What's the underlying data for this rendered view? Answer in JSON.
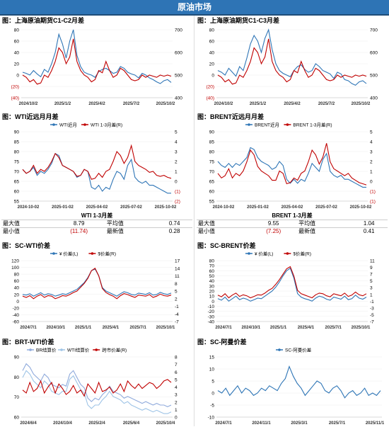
{
  "banner": "原油市场",
  "panels": [
    {
      "title": "图：上海原油期货C1-C2月差",
      "xticks": [
        "2024/10/2",
        "2025/1/2",
        "2025/4/2",
        "2025/7/2",
        "2025/10/2"
      ],
      "yL": [
        "80",
        "60",
        "40",
        "20",
        "0",
        "(20)",
        "(40)"
      ],
      "yR": [
        "700",
        "600",
        "500",
        "400"
      ],
      "legend": []
    },
    {
      "title": "图：上海原油期货C1-C3月差",
      "xticks": [
        "2024/10/2",
        "2025/1/2",
        "2025/4/2",
        "2025/7/2",
        "2025/10/2"
      ],
      "yL": [
        "80",
        "60",
        "40",
        "20",
        "0",
        "(20)",
        "(40)"
      ],
      "yR": [
        "700",
        "600",
        "500",
        "400"
      ],
      "legend": []
    },
    {
      "title": "图：WTI近远月月差",
      "xticks": [
        "2024-10-02",
        "2025-01-02",
        "2025-04-02",
        "2025-07-02",
        "2025-10-02"
      ],
      "yL": [
        "90",
        "85",
        "80",
        "75",
        "70",
        "65",
        "60",
        "55"
      ],
      "yR": [
        "5",
        "4",
        "3",
        "2",
        "1",
        "0",
        "(1)",
        "(2)"
      ],
      "legend": [
        "WTI近月",
        "WTI 1-3月差(R)"
      ]
    },
    {
      "title": "图：BRENT近远月月差",
      "xticks": [
        "2024-10-02",
        "2025-01-02",
        "2025-04-02",
        "2025-07-02",
        "2025-10-02"
      ],
      "yL": [
        "90",
        "85",
        "80",
        "75",
        "70",
        "65",
        "60",
        "55"
      ],
      "yR": [
        "5",
        "4",
        "3",
        "2",
        "1",
        "0",
        "(1)",
        "(1)"
      ],
      "legend": [
        "BRENT近月",
        "BRENT 1-3月差(R)"
      ]
    },
    {
      "title": "图：SC-WTI价差",
      "xticks": [
        "2024/7/1",
        "2024/10/1",
        "2025/1/1",
        "2025/4/1",
        "2025/7/1",
        "2025/10/1"
      ],
      "yL": [
        "120",
        "100",
        "80",
        "60",
        "40",
        "20",
        "0",
        "-20",
        "-40",
        "-60"
      ],
      "yR": [
        "17",
        "14",
        "11",
        "8",
        "5",
        "2",
        "-1",
        "-4",
        "-7"
      ],
      "legend": [
        "¥ 价差(L)",
        "$价差(R)"
      ]
    },
    {
      "title": "图：SC-BRENT价差",
      "xticks": [
        "2024/7/1",
        "2024/10/1",
        "2025/1/1",
        "2025/4/1",
        "2025/7/1",
        "2025/10/1"
      ],
      "yL": [
        "80",
        "70",
        "60",
        "50",
        "40",
        "30",
        "20",
        "10",
        "0",
        "-10",
        "-20",
        "-30",
        "-40"
      ],
      "yR": [
        "11",
        "9",
        "7",
        "5",
        "3",
        "1",
        "-1",
        "-3",
        "-5",
        "-7"
      ],
      "legend": [
        "¥ 价差(L)",
        "$价差(R)"
      ]
    },
    {
      "title": "图：BRT-WTI价差",
      "xticks": [
        "2024/6/4",
        "2024/10/4",
        "2025/2/4",
        "2025/6/4",
        "2025/10/4"
      ],
      "yL": [
        "90",
        "80",
        "70",
        "60"
      ],
      "yR": [
        "8",
        "7",
        "6",
        "5",
        "4",
        "3",
        "2",
        "1",
        "0"
      ],
      "legend": [
        "BR结算价",
        "WTI结算价",
        "跨市价差(R)"
      ]
    },
    {
      "title": "图：SC-阿曼价差",
      "xticks": [
        "2024/7/1",
        "2024/11/1",
        "2025/3/1",
        "2025/7/1",
        "2025/11/1"
      ],
      "yL": [
        "15",
        "10",
        "5",
        "0",
        "-5",
        "-10"
      ],
      "yR": [],
      "legend": [
        "SC-阿曼价差"
      ]
    }
  ],
  "stats": [
    {
      "title": "WTI 1-3月差",
      "rows": [
        [
          "最大值",
          "8.79",
          "平均值",
          "0.74"
        ],
        [
          "最小值",
          "(11.74)",
          "最新值",
          "0.28"
        ]
      ]
    },
    {
      "title": "BRENT 1-3月差",
      "rows": [
        [
          "最大值",
          "9.55",
          "平均值",
          "1.04"
        ],
        [
          "最小值",
          "(7.25)",
          "最新值",
          "0.41"
        ]
      ]
    }
  ],
  "colors": {
    "blue": "#2e75b6",
    "red": "#c00000",
    "gray": "#8faadc",
    "lightblue": "#9dc3e6"
  },
  "chart_data": [
    {
      "type": "line",
      "title": "上海原油期货C1-C2月差",
      "series": [
        {
          "values": [
            5,
            3,
            0,
            8,
            2,
            -3,
            10,
            5,
            20,
            40,
            72,
            55,
            30,
            60,
            80,
            35,
            15,
            5,
            2,
            0,
            -4,
            6,
            10,
            12,
            8,
            3,
            5,
            15,
            12,
            5,
            2,
            0,
            -5,
            3,
            0,
            -5,
            -8,
            -12,
            -15,
            -10,
            -8,
            -13
          ]
        },
        {
          "values": [
            500,
            490,
            470,
            480,
            460,
            465,
            500,
            490,
            520,
            560,
            620,
            600,
            550,
            580,
            660,
            560,
            520,
            500,
            490,
            470,
            480,
            520,
            510,
            560,
            520,
            490,
            500,
            530,
            520,
            500,
            480,
            475,
            480,
            500,
            490,
            500,
            495,
            490,
            500,
            495,
            500,
            495
          ]
        }
      ],
      "ylim": [
        -40,
        80
      ],
      "y2lim": [
        400,
        700
      ]
    },
    {
      "type": "line",
      "title": "上海原油期货C1-C3月差",
      "series": [
        {
          "values": [
            8,
            5,
            0,
            12,
            5,
            -2,
            15,
            8,
            30,
            55,
            70,
            60,
            40,
            65,
            85,
            45,
            20,
            8,
            3,
            0,
            -3,
            8,
            15,
            18,
            10,
            5,
            8,
            20,
            15,
            8,
            5,
            2,
            -6,
            5,
            2,
            -8,
            -10,
            -15,
            -18,
            -12,
            -10,
            -15
          ]
        },
        {
          "values": [
            500,
            490,
            470,
            480,
            460,
            465,
            500,
            490,
            520,
            560,
            620,
            600,
            550,
            580,
            660,
            560,
            520,
            500,
            490,
            470,
            480,
            520,
            510,
            560,
            520,
            490,
            500,
            530,
            520,
            500,
            480,
            475,
            480,
            500,
            490,
            500,
            495,
            490,
            500,
            495,
            500,
            495
          ]
        }
      ],
      "ylim": [
        -40,
        80
      ],
      "y2lim": [
        400,
        700
      ]
    },
    {
      "type": "line",
      "title": "WTI近远月月差",
      "series": [
        {
          "name": "WTI近月",
          "values": [
            71,
            69,
            70,
            72,
            68,
            70,
            69,
            71,
            74,
            79,
            78,
            73,
            72,
            71,
            70,
            67,
            68,
            71,
            70,
            62,
            61,
            63,
            60,
            62,
            61,
            66,
            70,
            69,
            66,
            73,
            76,
            67,
            65,
            64,
            65,
            63,
            63,
            62,
            61,
            60,
            59,
            59
          ]
        },
        {
          "name": "WTI 1-3月差(R)",
          "values": [
            1.2,
            0.8,
            1.0,
            1.6,
            0.8,
            1.2,
            1.0,
            1.4,
            2.0,
            2.8,
            2.4,
            1.6,
            1.4,
            1.2,
            1.0,
            0.5,
            0.6,
            1.2,
            1.0,
            0.2,
            0.3,
            0.8,
            0.4,
            1.0,
            1.2,
            2.0,
            3.0,
            2.6,
            1.8,
            2.4,
            3.6,
            2.0,
            1.6,
            1.4,
            1.2,
            0.9,
            1.0,
            0.6,
            0.5,
            0.6,
            0.4,
            0.3
          ]
        }
      ],
      "ylim": [
        55,
        90
      ],
      "y2lim": [
        -2,
        5
      ]
    },
    {
      "type": "line",
      "title": "BRENT近远月月差",
      "series": [
        {
          "name": "BRENT近月",
          "values": [
            75,
            73,
            72,
            74,
            72,
            74,
            73,
            75,
            77,
            82,
            81,
            77,
            75,
            74,
            73,
            71,
            72,
            75,
            73,
            66,
            64,
            66,
            64,
            66,
            65,
            69,
            74,
            72,
            70,
            76,
            79,
            70,
            68,
            67,
            68,
            66,
            66,
            65,
            64,
            63,
            62,
            62
          ]
        },
        {
          "name": "BRENT 1-3月差(R)",
          "values": [
            1.4,
            1.0,
            1.2,
            1.8,
            1.0,
            1.4,
            1.2,
            1.6,
            2.4,
            3.4,
            3.0,
            2.0,
            1.6,
            1.4,
            1.2,
            0.8,
            0.8,
            1.6,
            1.4,
            0.5,
            0.6,
            1.0,
            0.8,
            1.4,
            1.6,
            2.4,
            3.4,
            3.0,
            2.2,
            2.8,
            4.0,
            2.4,
            1.8,
            1.6,
            1.4,
            1.2,
            1.4,
            1.0,
            0.8,
            0.6,
            0.5,
            0.4
          ]
        }
      ],
      "ylim": [
        55,
        90
      ],
      "y2lim": [
        -1,
        5
      ]
    },
    {
      "type": "line",
      "title": "SC-WTI价差",
      "series": [
        {
          "name": "¥ 价差(L)",
          "values": [
            20,
            18,
            22,
            15,
            20,
            25,
            18,
            22,
            20,
            15,
            18,
            22,
            20,
            25,
            30,
            35,
            45,
            55,
            70,
            90,
            95,
            75,
            40,
            30,
            25,
            20,
            15,
            22,
            28,
            25,
            20,
            18,
            24,
            22,
            20,
            25,
            18,
            20,
            26,
            22,
            20,
            24
          ]
        },
        {
          "name": "$价差(R)",
          "values": [
            3,
            2.5,
            3.2,
            2,
            3,
            3.6,
            2.5,
            3.2,
            3,
            2,
            2.5,
            3.2,
            3,
            3.6,
            4.4,
            5,
            6.5,
            8,
            10,
            13,
            14,
            11,
            6,
            4.4,
            3.6,
            3,
            2,
            3.2,
            4,
            3.6,
            3,
            2.5,
            3.4,
            3.2,
            3,
            3.6,
            2.5,
            3,
            3.8,
            3.2,
            3,
            3.4
          ]
        }
      ],
      "ylim": [
        -60,
        120
      ],
      "y2lim": [
        -7,
        17
      ]
    },
    {
      "type": "line",
      "title": "SC-BRENT价差",
      "series": [
        {
          "name": "¥ 价差(L)",
          "values": [
            5,
            2,
            8,
            0,
            5,
            10,
            3,
            6,
            4,
            0,
            3,
            6,
            5,
            10,
            15,
            20,
            28,
            38,
            50,
            60,
            65,
            45,
            15,
            8,
            5,
            3,
            0,
            6,
            10,
            8,
            4,
            2,
            8,
            6,
            4,
            10,
            3,
            5,
            12,
            6,
            4,
            8
          ]
        },
        {
          "name": "$价差(R)",
          "values": [
            0.8,
            0.3,
            1.2,
            0,
            0.8,
            1.4,
            0.4,
            0.9,
            0.6,
            0,
            0.4,
            0.9,
            0.8,
            1.4,
            2.2,
            2.8,
            4,
            5.4,
            7,
            8.6,
            9.2,
            6.4,
            2.2,
            1.2,
            0.8,
            0.4,
            0,
            0.9,
            1.4,
            1.2,
            0.6,
            0.3,
            1.2,
            0.9,
            0.6,
            1.4,
            0.4,
            0.8,
            1.7,
            0.9,
            0.6,
            1.2
          ]
        }
      ],
      "ylim": [
        -40,
        80
      ],
      "y2lim": [
        -7,
        11
      ]
    },
    {
      "type": "line",
      "title": "BRT-WTI价差",
      "series": [
        {
          "name": "BR结算价",
          "values": [
            82,
            86,
            84,
            80,
            78,
            76,
            80,
            78,
            74,
            73,
            72,
            74,
            73,
            80,
            82,
            78,
            74,
            72,
            66,
            64,
            66,
            65,
            68,
            70,
            73,
            70,
            69,
            68,
            66,
            67,
            66,
            65,
            64,
            63,
            64,
            63,
            62,
            63,
            62,
            62,
            61,
            62
          ]
        },
        {
          "name": "WTI结算价",
          "values": [
            78,
            82,
            80,
            76,
            74,
            72,
            76,
            74,
            70,
            69,
            68,
            70,
            70,
            77,
            79,
            75,
            71,
            69,
            62,
            60,
            62,
            62,
            65,
            67,
            70,
            67,
            66,
            65,
            63,
            64,
            62,
            61,
            60,
            59,
            60,
            59,
            58,
            59,
            58,
            57,
            57,
            58
          ]
        },
        {
          "name": "跨市价差(R)",
          "values": [
            3.6,
            3.2,
            4.6,
            3.4,
            3.8,
            4.8,
            3.2,
            4,
            4.6,
            3.2,
            4.4,
            3.8,
            3,
            3.4,
            4.2,
            3.2,
            3.6,
            2.8,
            4.4,
            3.8,
            3.2,
            4.6,
            3.4,
            3.6,
            4,
            3.2,
            3.6,
            4.4,
            3.4,
            4.8,
            4.2,
            3.8,
            4.4,
            3.8,
            4.2,
            4.6,
            4.4,
            3.8,
            4.2,
            4.8,
            5,
            4.6
          ]
        }
      ],
      "ylim": [
        55,
        90
      ],
      "y2lim": [
        0,
        8
      ]
    },
    {
      "type": "line",
      "title": "SC-阿曼价差",
      "series": [
        {
          "name": "SC-阿曼价差",
          "values": [
            1,
            0,
            2,
            -1,
            1,
            3,
            0,
            2,
            1,
            -1,
            0,
            2,
            1,
            3,
            2,
            1,
            4,
            6,
            11,
            7,
            4,
            2,
            -1,
            1,
            3,
            5,
            4,
            1,
            0,
            2,
            3,
            1,
            -2,
            0,
            1,
            -1,
            0,
            2,
            -1,
            0,
            -1,
            1
          ]
        }
      ],
      "ylim": [
        -10,
        15
      ]
    }
  ]
}
